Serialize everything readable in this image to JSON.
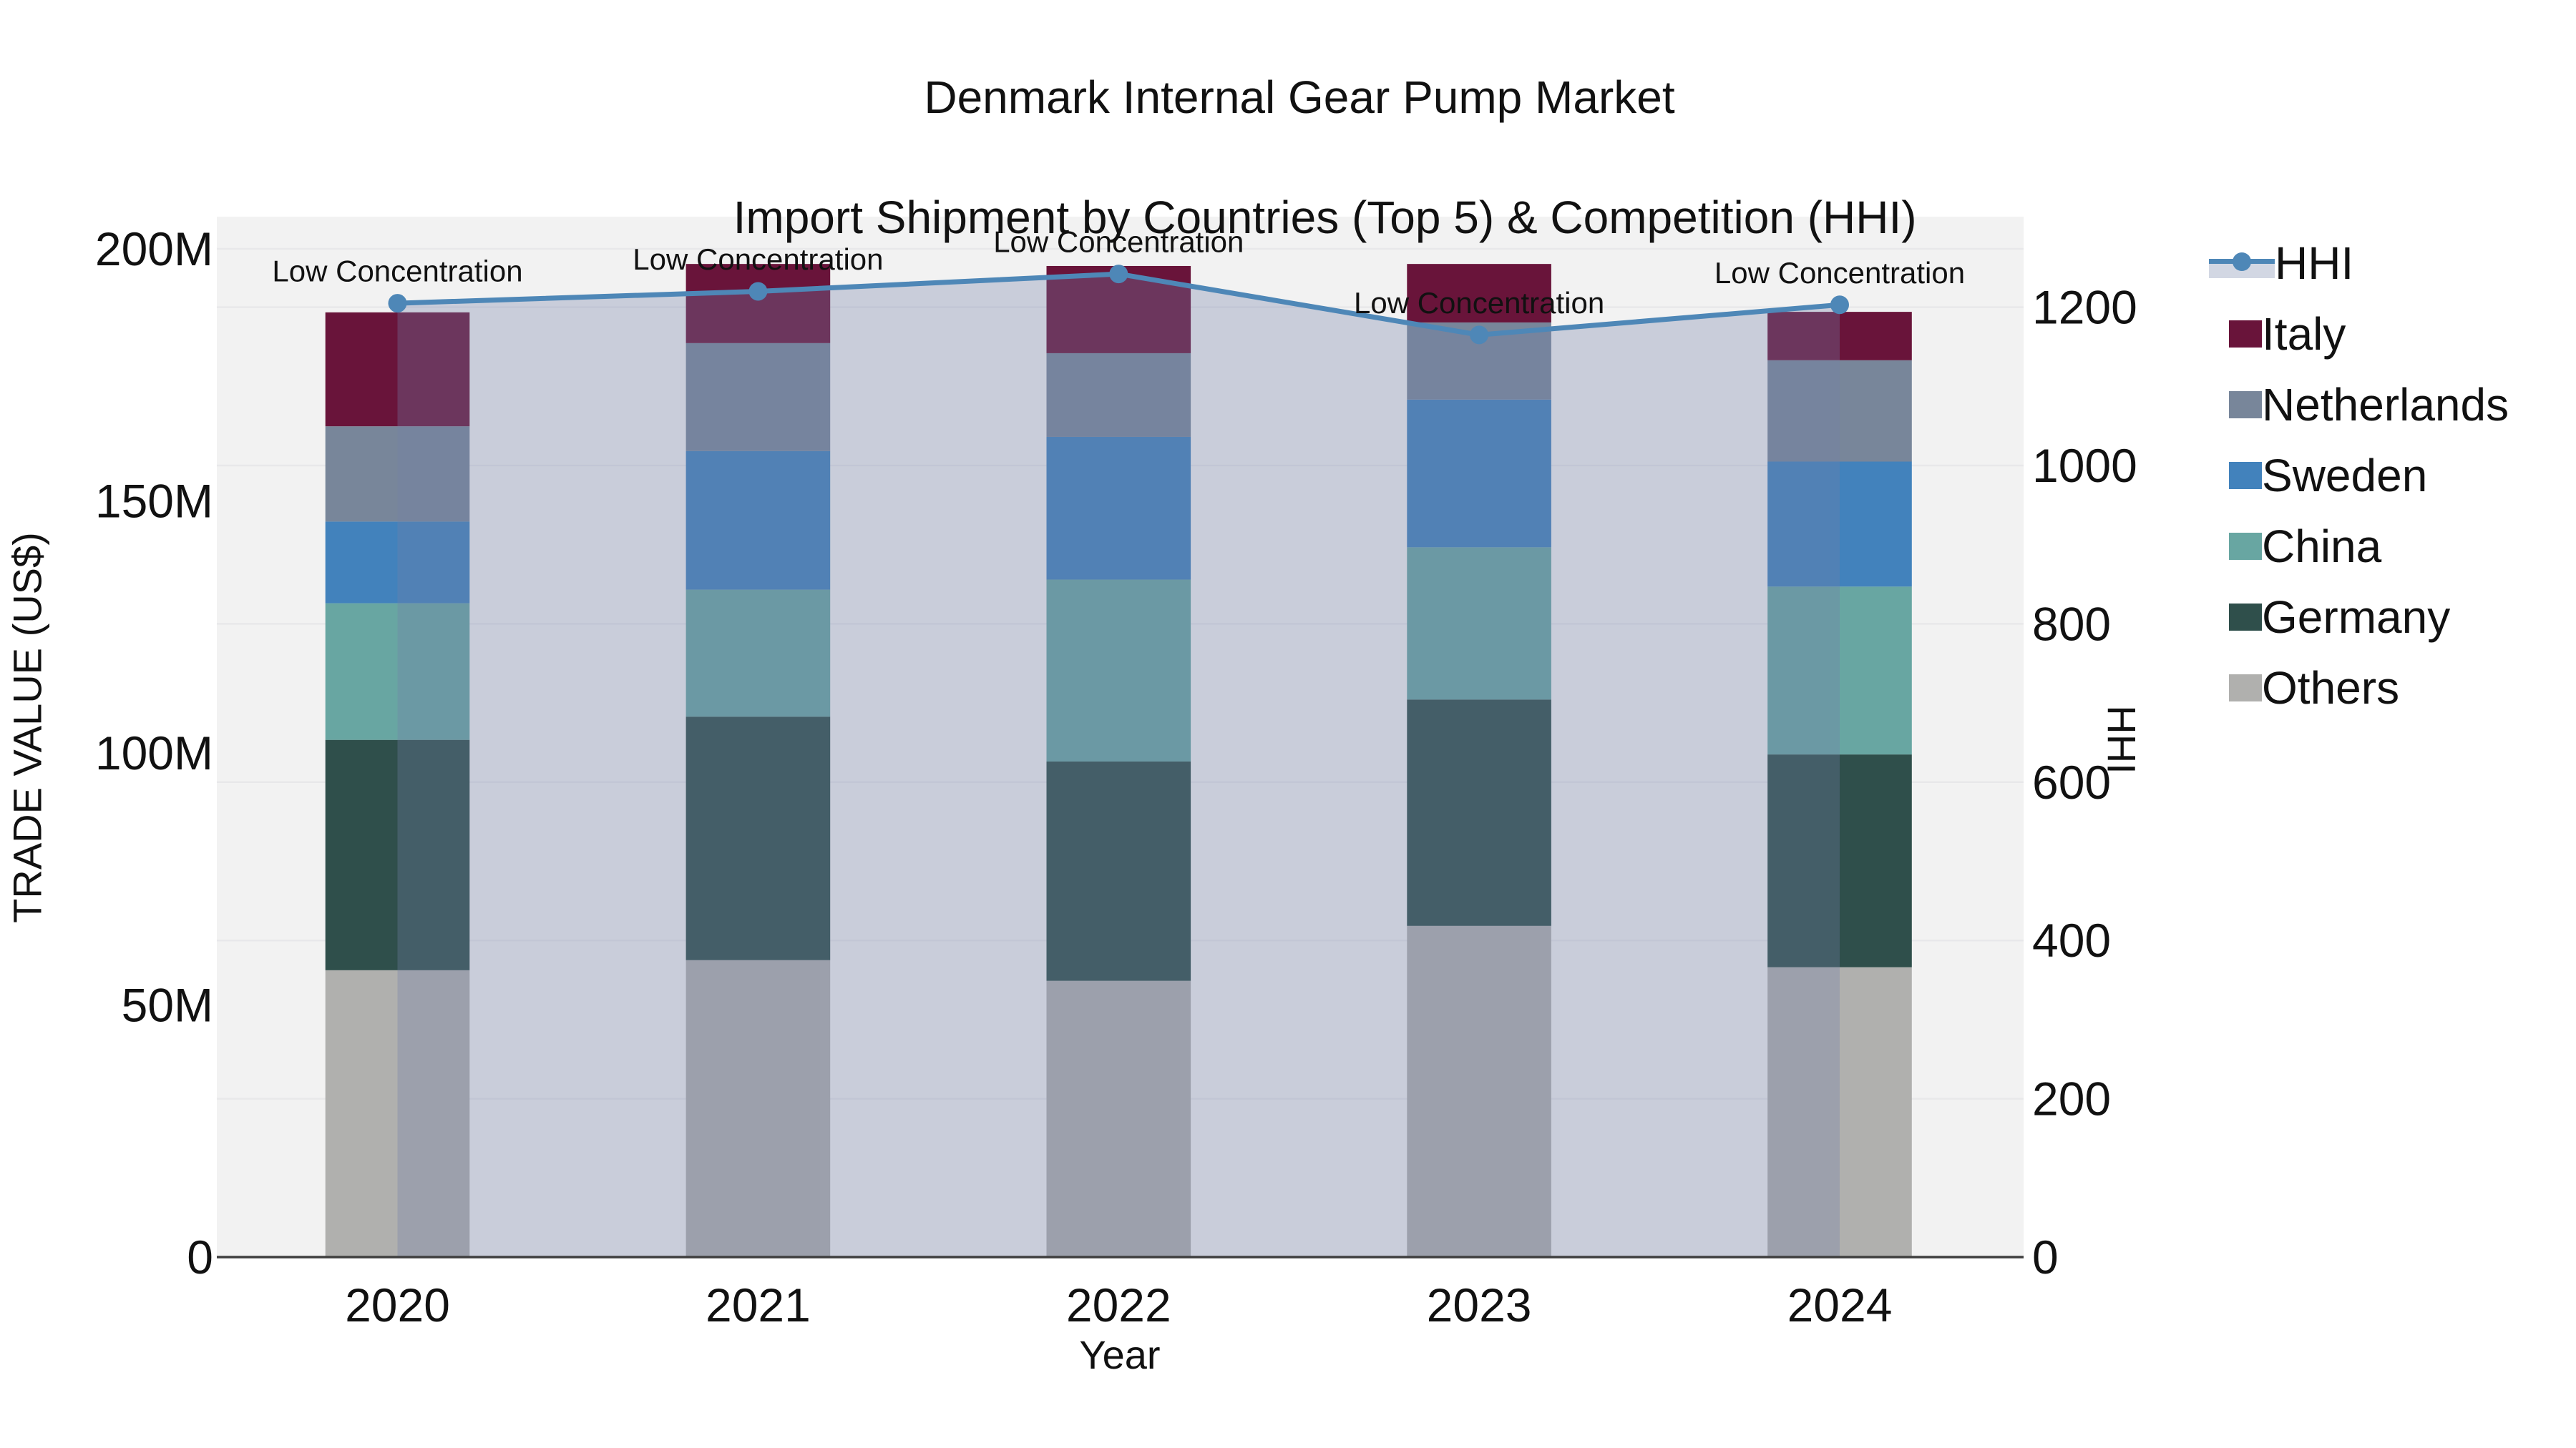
{
  "title": {
    "line1": "Denmark Internal Gear Pump Market",
    "line2": "Import Shipment by Countries (Top 5) & Competition (HHI)"
  },
  "axes": {
    "y_left": {
      "title": "TRADE VALUE (US$)",
      "ticks": [
        "0",
        "50M",
        "100M",
        "150M",
        "200M"
      ],
      "tick_values": [
        0,
        50,
        100,
        150,
        200
      ]
    },
    "y_right": {
      "title": "HHI",
      "ticks": [
        "0",
        "200",
        "400",
        "600",
        "800",
        "1000",
        "1200"
      ],
      "tick_values": [
        0,
        200,
        400,
        600,
        800,
        1000,
        1200
      ]
    },
    "x": {
      "title": "Year",
      "ticks": [
        "2020",
        "2021",
        "2022",
        "2023",
        "2024"
      ]
    }
  },
  "legend": {
    "items": [
      "HHI",
      "Italy",
      "Netherlands",
      "Sweden",
      "China",
      "Germany",
      "Others"
    ]
  },
  "annotation_label": "Low Concentration",
  "colors": {
    "plot_bg": "#f2f2f2",
    "grid": "#e8e8ea",
    "axis_line": "#3f3f3f",
    "hhi_line": "#4e87b7",
    "hhi_fill": "rgba(114,129,167,0.32)",
    "italy": "#69143a",
    "netherlands": "#78869a",
    "sweden": "#4282bc",
    "china": "#68a6a2",
    "germany": "#2f4f4b",
    "others": "#b0b0ae"
  },
  "chart_data": {
    "type": "bar",
    "subtype": "stacked bars (left axis, trade value in millions US$) + HHI line with area fill (right axis)",
    "categories": [
      "2020",
      "2021",
      "2022",
      "2023",
      "2024"
    ],
    "stack_order_bottom_to_top": [
      "Others",
      "Germany",
      "China",
      "Sweden",
      "Netherlands",
      "Italy"
    ],
    "series": [
      {
        "name": "Italy",
        "color": "#69143a",
        "values": [
          22.6,
          15.7,
          17.3,
          11.6,
          9.6
        ]
      },
      {
        "name": "Netherlands",
        "color": "#78869a",
        "values": [
          18.9,
          21.4,
          16.6,
          15.3,
          20.1
        ]
      },
      {
        "name": "Sweden",
        "color": "#4282bc",
        "values": [
          16.2,
          27.5,
          28.3,
          29.3,
          24.8
        ]
      },
      {
        "name": "China",
        "color": "#68a6a2",
        "values": [
          27.1,
          25.2,
          36.1,
          30.2,
          33.3
        ]
      },
      {
        "name": "Germany",
        "color": "#2f4f4b",
        "values": [
          45.7,
          48.3,
          43.5,
          44.9,
          42.2
        ]
      },
      {
        "name": "Others",
        "color": "#b0b0ae",
        "values": [
          56.9,
          58.9,
          54.8,
          65.7,
          57.5
        ]
      }
    ],
    "bar_totals": [
      187.4,
      197.0,
      196.6,
      197.0,
      187.5
    ],
    "hhi": {
      "name": "HHI",
      "values": [
        1205,
        1220,
        1242,
        1165,
        1203
      ],
      "annotations": [
        "Low Concentration",
        "Low Concentration",
        "Low Concentration",
        "Low Concentration",
        "Low Concentration"
      ]
    },
    "title": "Denmark Internal Gear Pump Market — Import Shipment by Countries (Top 5) & Competition (HHI)",
    "xlabel": "Year",
    "ylabel_left": "TRADE VALUE (US$)",
    "ylabel_right": "HHI",
    "ylim_left": [
      0,
      206
    ],
    "ylim_right": [
      0,
      1314
    ],
    "grid": true,
    "legend_position": "right"
  }
}
